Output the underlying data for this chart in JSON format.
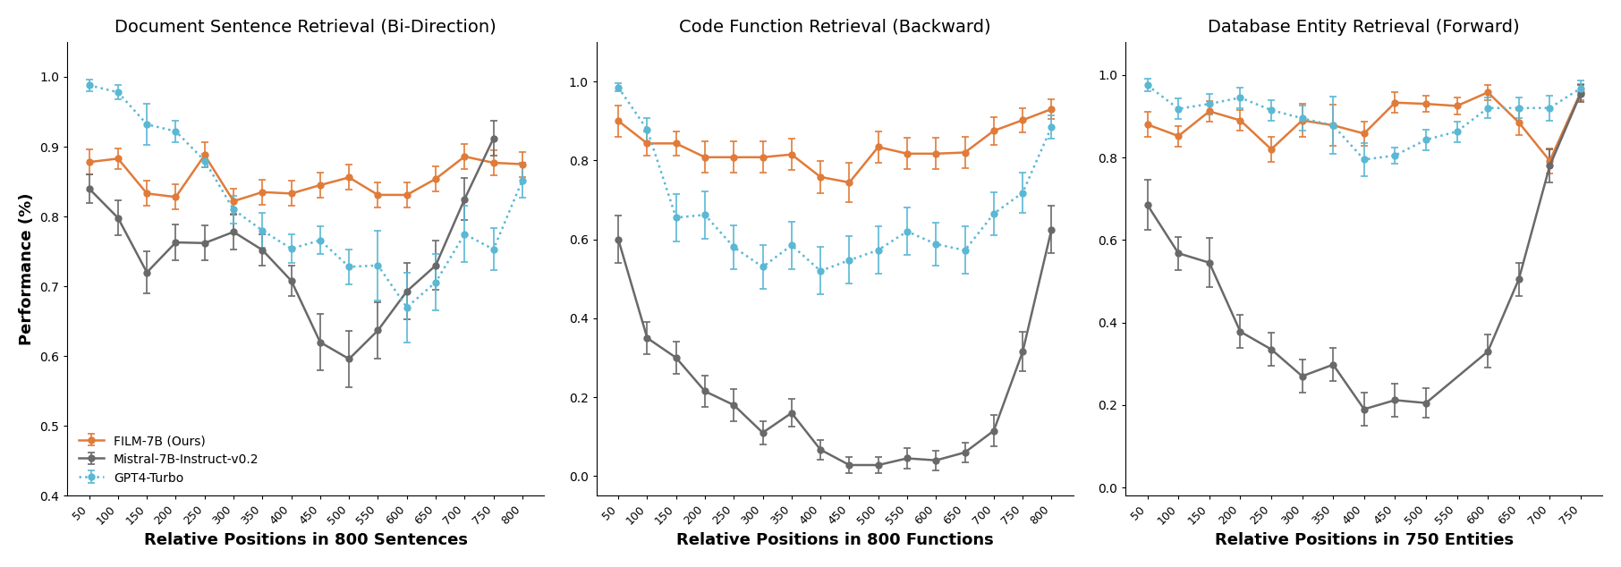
{
  "plot1": {
    "title": "Document Sentence Retrieval (Bi-Direction)",
    "xlabel": "Relative Positions in 800 Sentences",
    "ylabel": "Performance (%)",
    "x": [
      50,
      100,
      150,
      200,
      250,
      300,
      350,
      400,
      450,
      500,
      550,
      600,
      650,
      700,
      750,
      800
    ],
    "film": [
      0.878,
      0.883,
      0.833,
      0.828,
      0.888,
      0.822,
      0.835,
      0.833,
      0.845,
      0.856,
      0.831,
      0.831,
      0.854,
      0.886,
      0.877,
      0.875
    ],
    "film_err": [
      0.018,
      0.015,
      0.018,
      0.018,
      0.018,
      0.018,
      0.018,
      0.018,
      0.018,
      0.018,
      0.018,
      0.018,
      0.018,
      0.018,
      0.018,
      0.018
    ],
    "mistral": [
      0.84,
      0.798,
      0.72,
      0.763,
      0.762,
      0.778,
      0.752,
      0.708,
      0.62,
      0.596,
      0.637,
      0.693,
      0.73,
      0.825,
      0.912,
      null
    ],
    "mistral_err": [
      0.02,
      0.025,
      0.03,
      0.025,
      0.025,
      0.025,
      0.022,
      0.022,
      0.04,
      0.04,
      0.04,
      0.04,
      0.035,
      0.03,
      0.025,
      null
    ],
    "gpt4": [
      0.988,
      0.978,
      0.932,
      0.922,
      0.88,
      0.81,
      0.78,
      0.754,
      0.766,
      0.728,
      0.73,
      0.67,
      0.706,
      0.775,
      0.753,
      0.852
    ],
    "gpt4_err": [
      0.008,
      0.01,
      0.03,
      0.015,
      0.01,
      0.02,
      0.025,
      0.02,
      0.02,
      0.025,
      0.05,
      0.05,
      0.04,
      0.04,
      0.03,
      0.025
    ],
    "ylim": [
      0.4,
      1.05
    ]
  },
  "plot2": {
    "title": "Code Function Retrieval (Backward)",
    "xlabel": "Relative Positions in 800 Functions",
    "x": [
      50,
      100,
      150,
      200,
      250,
      300,
      350,
      400,
      450,
      500,
      550,
      600,
      650,
      700,
      750,
      800
    ],
    "film": [
      0.9,
      0.843,
      0.843,
      0.808,
      0.808,
      0.808,
      0.815,
      0.758,
      0.744,
      0.834,
      0.817,
      0.817,
      0.82,
      0.875,
      0.902,
      0.93
    ],
    "film_err": [
      0.04,
      0.03,
      0.03,
      0.04,
      0.04,
      0.04,
      0.04,
      0.04,
      0.05,
      0.04,
      0.04,
      0.04,
      0.04,
      0.035,
      0.03,
      0.025
    ],
    "mistral": [
      0.6,
      0.35,
      0.3,
      0.215,
      0.18,
      0.11,
      0.16,
      0.067,
      0.028,
      0.028,
      0.045,
      0.04,
      0.06,
      0.115,
      0.315,
      0.625
    ],
    "mistral_err": [
      0.06,
      0.04,
      0.04,
      0.04,
      0.04,
      0.03,
      0.035,
      0.025,
      0.02,
      0.02,
      0.025,
      0.025,
      0.025,
      0.04,
      0.05,
      0.06
    ],
    "gpt4": [
      0.985,
      0.878,
      0.655,
      0.662,
      0.58,
      0.53,
      0.585,
      0.52,
      0.547,
      0.573,
      0.62,
      0.588,
      0.572,
      0.665,
      0.718,
      0.885
    ],
    "gpt4_err": [
      0.01,
      0.03,
      0.06,
      0.06,
      0.055,
      0.055,
      0.06,
      0.06,
      0.06,
      0.06,
      0.06,
      0.055,
      0.06,
      0.055,
      0.05,
      0.03
    ],
    "ylim": [
      -0.05,
      1.1
    ]
  },
  "plot3": {
    "title": "Database Entity Retrieval (Forward)",
    "xlabel": "Relative Positions in 750 Entities",
    "x": [
      50,
      100,
      150,
      200,
      250,
      300,
      350,
      400,
      450,
      500,
      550,
      600,
      650,
      700,
      750
    ],
    "film": [
      0.88,
      0.852,
      0.912,
      0.89,
      0.82,
      0.89,
      0.878,
      0.858,
      0.933,
      0.93,
      0.925,
      0.958,
      0.885,
      0.792,
      0.958
    ],
    "film_err": [
      0.03,
      0.025,
      0.025,
      0.025,
      0.03,
      0.04,
      0.05,
      0.03,
      0.025,
      0.02,
      0.02,
      0.018,
      0.03,
      0.03,
      0.02
    ],
    "mistral": [
      0.685,
      0.568,
      0.545,
      0.378,
      0.335,
      0.27,
      0.298,
      0.19,
      0.212,
      0.205,
      null,
      0.33,
      0.505,
      0.78,
      0.955
    ],
    "mistral_err": [
      0.06,
      0.04,
      0.06,
      0.04,
      0.04,
      0.04,
      0.04,
      0.04,
      0.04,
      0.035,
      null,
      0.04,
      0.04,
      0.04,
      0.02
    ],
    "gpt4": [
      0.975,
      0.918,
      0.93,
      0.945,
      0.915,
      0.895,
      0.878,
      0.795,
      0.805,
      0.843,
      0.863,
      0.92,
      0.92,
      0.92,
      0.968
    ],
    "gpt4_err": [
      0.015,
      0.025,
      0.025,
      0.025,
      0.025,
      0.03,
      0.07,
      0.04,
      0.02,
      0.025,
      0.025,
      0.025,
      0.025,
      0.03,
      0.018
    ],
    "ylim": [
      -0.02,
      1.08
    ]
  },
  "colors": {
    "film": "#E07B39",
    "mistral": "#696969",
    "gpt4": "#5BB8D4"
  },
  "legend_labels": [
    "FILM-7B (Ours)",
    "Mistral-7B-Instruct-v0.2",
    "GPT4-Turbo"
  ]
}
